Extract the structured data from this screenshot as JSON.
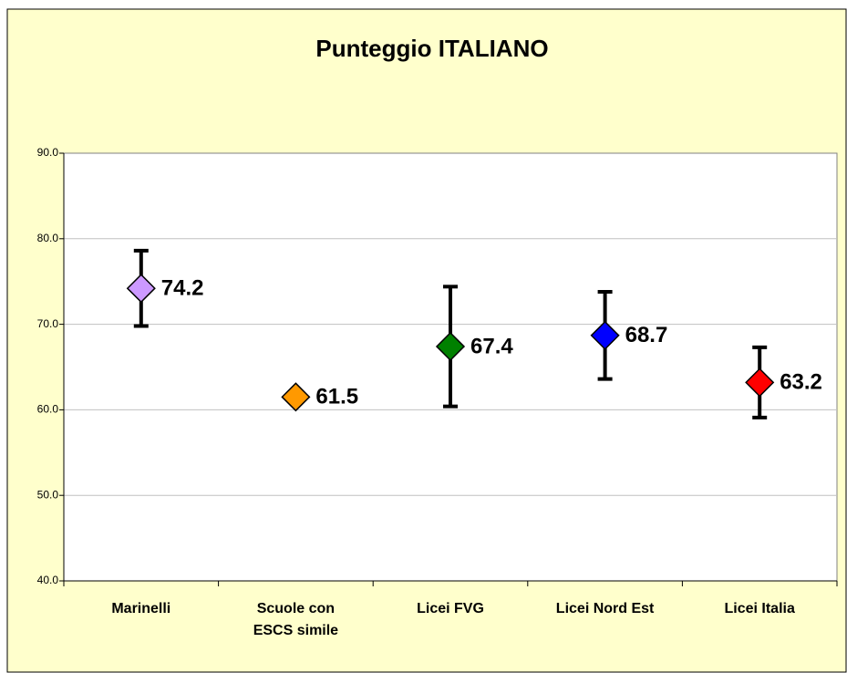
{
  "chart_data": {
    "type": "errorbar",
    "title": "Punteggio ITALIANO",
    "categories": [
      "Marinelli",
      "Scuole con ESCS simile",
      "Licei FVG",
      "Licei Nord Est",
      "Licei Italia"
    ],
    "series": [
      {
        "values": [
          74.2,
          61.5,
          67.4,
          68.7,
          63.2
        ],
        "errors": [
          4.4,
          null,
          7.0,
          5.1,
          4.1
        ],
        "colors": [
          "#cc99ff",
          "#ff9900",
          "#008000",
          "#0000ff",
          "#ff0000"
        ]
      }
    ],
    "ylim": [
      40,
      90
    ],
    "yticks": [
      {
        "value": 40,
        "label": "40.0"
      },
      {
        "value": 50,
        "label": "50.0"
      },
      {
        "value": 60,
        "label": "60.0"
      },
      {
        "value": 70,
        "label": "70.0"
      },
      {
        "value": 80,
        "label": "80.0"
      },
      {
        "value": 90,
        "label": "90.0"
      }
    ],
    "grid": true
  }
}
